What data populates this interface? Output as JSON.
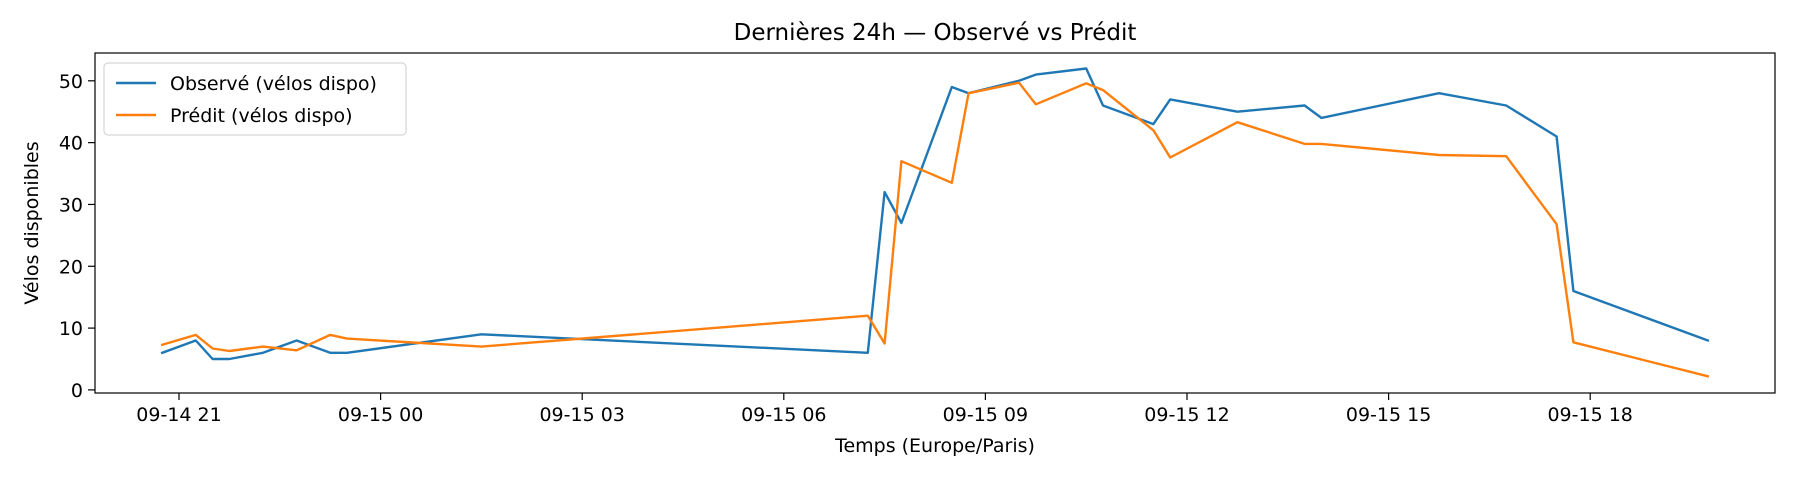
{
  "chart_data": {
    "type": "line",
    "title": "Dernières 24h — Observé vs Prédit",
    "xlabel": "Temps (Europe/Paris)",
    "ylabel": "Vélos disponibles",
    "x_range": [
      "09-14 19:45",
      "09-15 20:45"
    ],
    "ylim": [
      -0.5,
      54.5
    ],
    "grid": false,
    "legend_position": "top-left",
    "x_ticks": [
      {
        "hour": 21,
        "label": "09-14 21"
      },
      {
        "hour": 24,
        "label": "09-15 00"
      },
      {
        "hour": 27,
        "label": "09-15 03"
      },
      {
        "hour": 30,
        "label": "09-15 06"
      },
      {
        "hour": 33,
        "label": "09-15 09"
      },
      {
        "hour": 36,
        "label": "09-15 12"
      },
      {
        "hour": 39,
        "label": "09-15 15"
      },
      {
        "hour": 42,
        "label": "09-15 18"
      }
    ],
    "y_ticks": [
      0,
      10,
      20,
      30,
      40,
      50
    ],
    "series": [
      {
        "name": "Observé (vélos dispo)",
        "color": "#1f77b4",
        "points": [
          {
            "t": "09-14 20:45",
            "y": 6
          },
          {
            "t": "09-14 21:15",
            "y": 8
          },
          {
            "t": "09-14 21:30",
            "y": 5
          },
          {
            "t": "09-14 21:45",
            "y": 5
          },
          {
            "t": "09-14 22:15",
            "y": 6
          },
          {
            "t": "09-14 22:45",
            "y": 8
          },
          {
            "t": "09-14 23:15",
            "y": 6
          },
          {
            "t": "09-14 23:30",
            "y": 6
          },
          {
            "t": "09-15 01:30",
            "y": 9
          },
          {
            "t": "09-15 07:15",
            "y": 6
          },
          {
            "t": "09-15 07:30",
            "y": 32
          },
          {
            "t": "09-15 07:45",
            "y": 27
          },
          {
            "t": "09-15 08:30",
            "y": 49
          },
          {
            "t": "09-15 08:45",
            "y": 48
          },
          {
            "t": "09-15 09:30",
            "y": 50
          },
          {
            "t": "09-15 09:45",
            "y": 51
          },
          {
            "t": "09-15 10:30",
            "y": 52
          },
          {
            "t": "09-15 10:45",
            "y": 46
          },
          {
            "t": "09-15 11:30",
            "y": 43
          },
          {
            "t": "09-15 11:45",
            "y": 47
          },
          {
            "t": "09-15 12:45",
            "y": 45
          },
          {
            "t": "09-15 13:45",
            "y": 46
          },
          {
            "t": "09-15 14:00",
            "y": 44
          },
          {
            "t": "09-15 15:45",
            "y": 48
          },
          {
            "t": "09-15 16:45",
            "y": 46
          },
          {
            "t": "09-15 17:30",
            "y": 41
          },
          {
            "t": "09-15 17:45",
            "y": 16
          },
          {
            "t": "09-15 19:45",
            "y": 8
          }
        ]
      },
      {
        "name": "Prédit (vélos dispo)",
        "color": "#ff7f0e",
        "points": [
          {
            "t": "09-14 20:45",
            "y": 7.3
          },
          {
            "t": "09-14 21:15",
            "y": 8.9
          },
          {
            "t": "09-14 21:30",
            "y": 6.7
          },
          {
            "t": "09-14 21:45",
            "y": 6.3
          },
          {
            "t": "09-14 22:15",
            "y": 7.0
          },
          {
            "t": "09-14 22:45",
            "y": 6.4
          },
          {
            "t": "09-14 23:15",
            "y": 8.9
          },
          {
            "t": "09-14 23:30",
            "y": 8.3
          },
          {
            "t": "09-15 01:30",
            "y": 7.0
          },
          {
            "t": "09-15 07:15",
            "y": 12.0
          },
          {
            "t": "09-15 07:30",
            "y": 7.5
          },
          {
            "t": "09-15 07:45",
            "y": 37.0
          },
          {
            "t": "09-15 08:30",
            "y": 33.5
          },
          {
            "t": "09-15 08:45",
            "y": 48.0
          },
          {
            "t": "09-15 09:30",
            "y": 49.7
          },
          {
            "t": "09-15 09:45",
            "y": 46.2
          },
          {
            "t": "09-15 10:30",
            "y": 49.6
          },
          {
            "t": "09-15 10:45",
            "y": 48.5
          },
          {
            "t": "09-15 11:30",
            "y": 42.0
          },
          {
            "t": "09-15 11:45",
            "y": 37.6
          },
          {
            "t": "09-15 12:45",
            "y": 43.3
          },
          {
            "t": "09-15 13:45",
            "y": 39.8
          },
          {
            "t": "09-15 14:00",
            "y": 39.8
          },
          {
            "t": "09-15 15:45",
            "y": 38.0
          },
          {
            "t": "09-15 16:45",
            "y": 37.8
          },
          {
            "t": "09-15 17:30",
            "y": 26.8
          },
          {
            "t": "09-15 17:45",
            "y": 7.7
          },
          {
            "t": "09-15 19:45",
            "y": 2.2
          }
        ]
      }
    ]
  }
}
